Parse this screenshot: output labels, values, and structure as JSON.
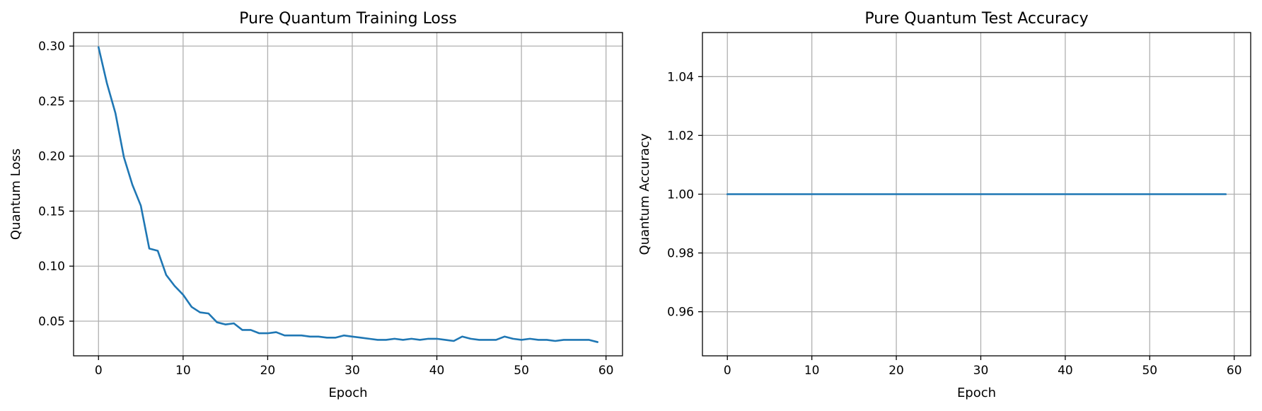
{
  "chart_data": [
    {
      "type": "line",
      "title": "Pure Quantum Training Loss",
      "xlabel": "Epoch",
      "ylabel": "Quantum Loss",
      "xlim": [
        -2.95,
        61.95
      ],
      "ylim": [
        0.0185,
        0.3123
      ],
      "xticks": [
        0,
        10,
        20,
        30,
        40,
        50,
        60
      ],
      "yticks": [
        0.05,
        0.1,
        0.15,
        0.2,
        0.25,
        0.3
      ],
      "ytick_labels": [
        "0.05",
        "0.10",
        "0.15",
        "0.20",
        "0.25",
        "0.30"
      ],
      "grid": true,
      "color": "#1f77b4",
      "x": [
        0,
        1,
        2,
        3,
        4,
        5,
        6,
        7,
        8,
        9,
        10,
        11,
        12,
        13,
        14,
        15,
        16,
        17,
        18,
        19,
        20,
        21,
        22,
        23,
        24,
        25,
        26,
        27,
        28,
        29,
        30,
        31,
        32,
        33,
        34,
        35,
        36,
        37,
        38,
        39,
        40,
        41,
        42,
        43,
        44,
        45,
        46,
        47,
        48,
        49,
        50,
        51,
        52,
        53,
        54,
        55,
        56,
        57,
        58,
        59
      ],
      "y": [
        0.299,
        0.266,
        0.239,
        0.199,
        0.174,
        0.155,
        0.116,
        0.114,
        0.092,
        0.082,
        0.074,
        0.063,
        0.058,
        0.057,
        0.049,
        0.047,
        0.048,
        0.042,
        0.042,
        0.039,
        0.039,
        0.04,
        0.037,
        0.037,
        0.037,
        0.036,
        0.036,
        0.035,
        0.035,
        0.037,
        0.036,
        0.035,
        0.034,
        0.033,
        0.033,
        0.034,
        0.033,
        0.034,
        0.033,
        0.034,
        0.034,
        0.033,
        0.032,
        0.036,
        0.034,
        0.033,
        0.033,
        0.033,
        0.036,
        0.034,
        0.033,
        0.034,
        0.033,
        0.033,
        0.032,
        0.033,
        0.033,
        0.033,
        0.033,
        0.031
      ]
    },
    {
      "type": "line",
      "title": "Pure Quantum Test Accuracy",
      "xlabel": "Epoch",
      "ylabel": "Quantum Accuracy",
      "xlim": [
        -2.95,
        61.95
      ],
      "ylim": [
        0.945,
        1.055
      ],
      "xticks": [
        0,
        10,
        20,
        30,
        40,
        50,
        60
      ],
      "yticks": [
        0.96,
        0.98,
        1.0,
        1.02,
        1.04
      ],
      "ytick_labels": [
        "0.96",
        "0.98",
        "1.00",
        "1.02",
        "1.04"
      ],
      "grid": true,
      "color": "#1f77b4",
      "x": [
        0,
        59
      ],
      "y": [
        1.0,
        1.0
      ]
    }
  ]
}
